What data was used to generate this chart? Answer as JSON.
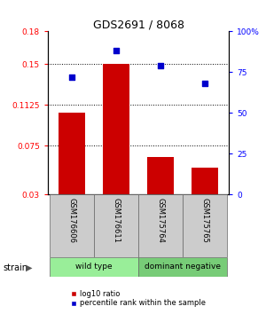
{
  "title": "GDS2691 / 8068",
  "samples": [
    "GSM176606",
    "GSM176611",
    "GSM175764",
    "GSM175765"
  ],
  "log10_ratio": [
    0.105,
    0.15,
    0.065,
    0.055
  ],
  "percentile_rank": [
    72,
    88,
    79,
    68
  ],
  "ylim_left": [
    0.03,
    0.18
  ],
  "ylim_right": [
    0,
    100
  ],
  "yticks_left": [
    0.03,
    0.075,
    0.1125,
    0.15,
    0.18
  ],
  "ytick_labels_left": [
    "0.03",
    "0.075",
    "0.1125",
    "0.15",
    "0.18"
  ],
  "yticks_right": [
    0,
    25,
    50,
    75,
    100
  ],
  "ytick_labels_right": [
    "0",
    "25",
    "50",
    "75",
    "100%"
  ],
  "hlines": [
    0.075,
    0.1125,
    0.15
  ],
  "bar_color": "#cc0000",
  "dot_color": "#0000cc",
  "strain_groups": [
    {
      "label": "wild type",
      "color": "#99ee99",
      "samples": [
        0,
        1
      ]
    },
    {
      "label": "dominant negative",
      "color": "#77cc77",
      "samples": [
        2,
        3
      ]
    }
  ],
  "legend_bar_label": "log10 ratio",
  "legend_dot_label": "percentile rank within the sample",
  "strain_label": "strain"
}
